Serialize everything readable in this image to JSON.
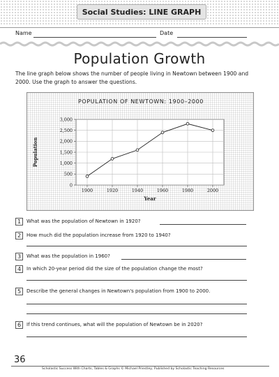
{
  "header": {
    "banner": "Social Studies: LINE GRAPH"
  },
  "form": {
    "name_label": "Name",
    "date_label": "Date"
  },
  "page_title": "Population Growth",
  "intro": "The line graph below shows the number of people living in Newtown between 1900 and 2000. Use the graph to answer the questions.",
  "chart_data": {
    "type": "line",
    "title": "POPULATION OF NEWTOWN: 1900–2000",
    "xlabel": "Year",
    "ylabel": "Population",
    "x": [
      1900,
      1920,
      1940,
      1960,
      1980,
      2000
    ],
    "series": [
      {
        "values": [
          400,
          1200,
          1600,
          2400,
          2800,
          2500
        ]
      }
    ],
    "x_ticks": [
      "1900",
      "1920",
      "1940",
      "1960",
      "1980",
      "2000"
    ],
    "y_ticks": [
      "0",
      "500",
      "1,000",
      "1,500",
      "2,000",
      "2,500",
      "3,000"
    ],
    "y_tick_values": [
      0,
      500,
      1000,
      1500,
      2000,
      2500,
      3000
    ],
    "ylim": [
      0,
      3000
    ],
    "grid": true,
    "line_color": "#222222",
    "grid_color": "#bdbdbd"
  },
  "questions": [
    {
      "num": "1",
      "text": "What was the population of Newtown in 1920?"
    },
    {
      "num": "2",
      "text": "How much did the population increase from 1920 to 1940?"
    },
    {
      "num": "3",
      "text": "What was the population in 1960?"
    },
    {
      "num": "4",
      "text": "In which 20-year period did the size of the population change the most?"
    },
    {
      "num": "5",
      "text": "Describe the general changes in Newtown's population from 1900 to 2000."
    },
    {
      "num": "6",
      "text": "If this trend continues, what will the population of Newtown be in 2020?"
    }
  ],
  "footer": {
    "page_number": "36",
    "credit": "Scholastic Success With Charts, Tables & Graphs © Michael Priestley, Published by Scholastic Teaching Resources"
  }
}
